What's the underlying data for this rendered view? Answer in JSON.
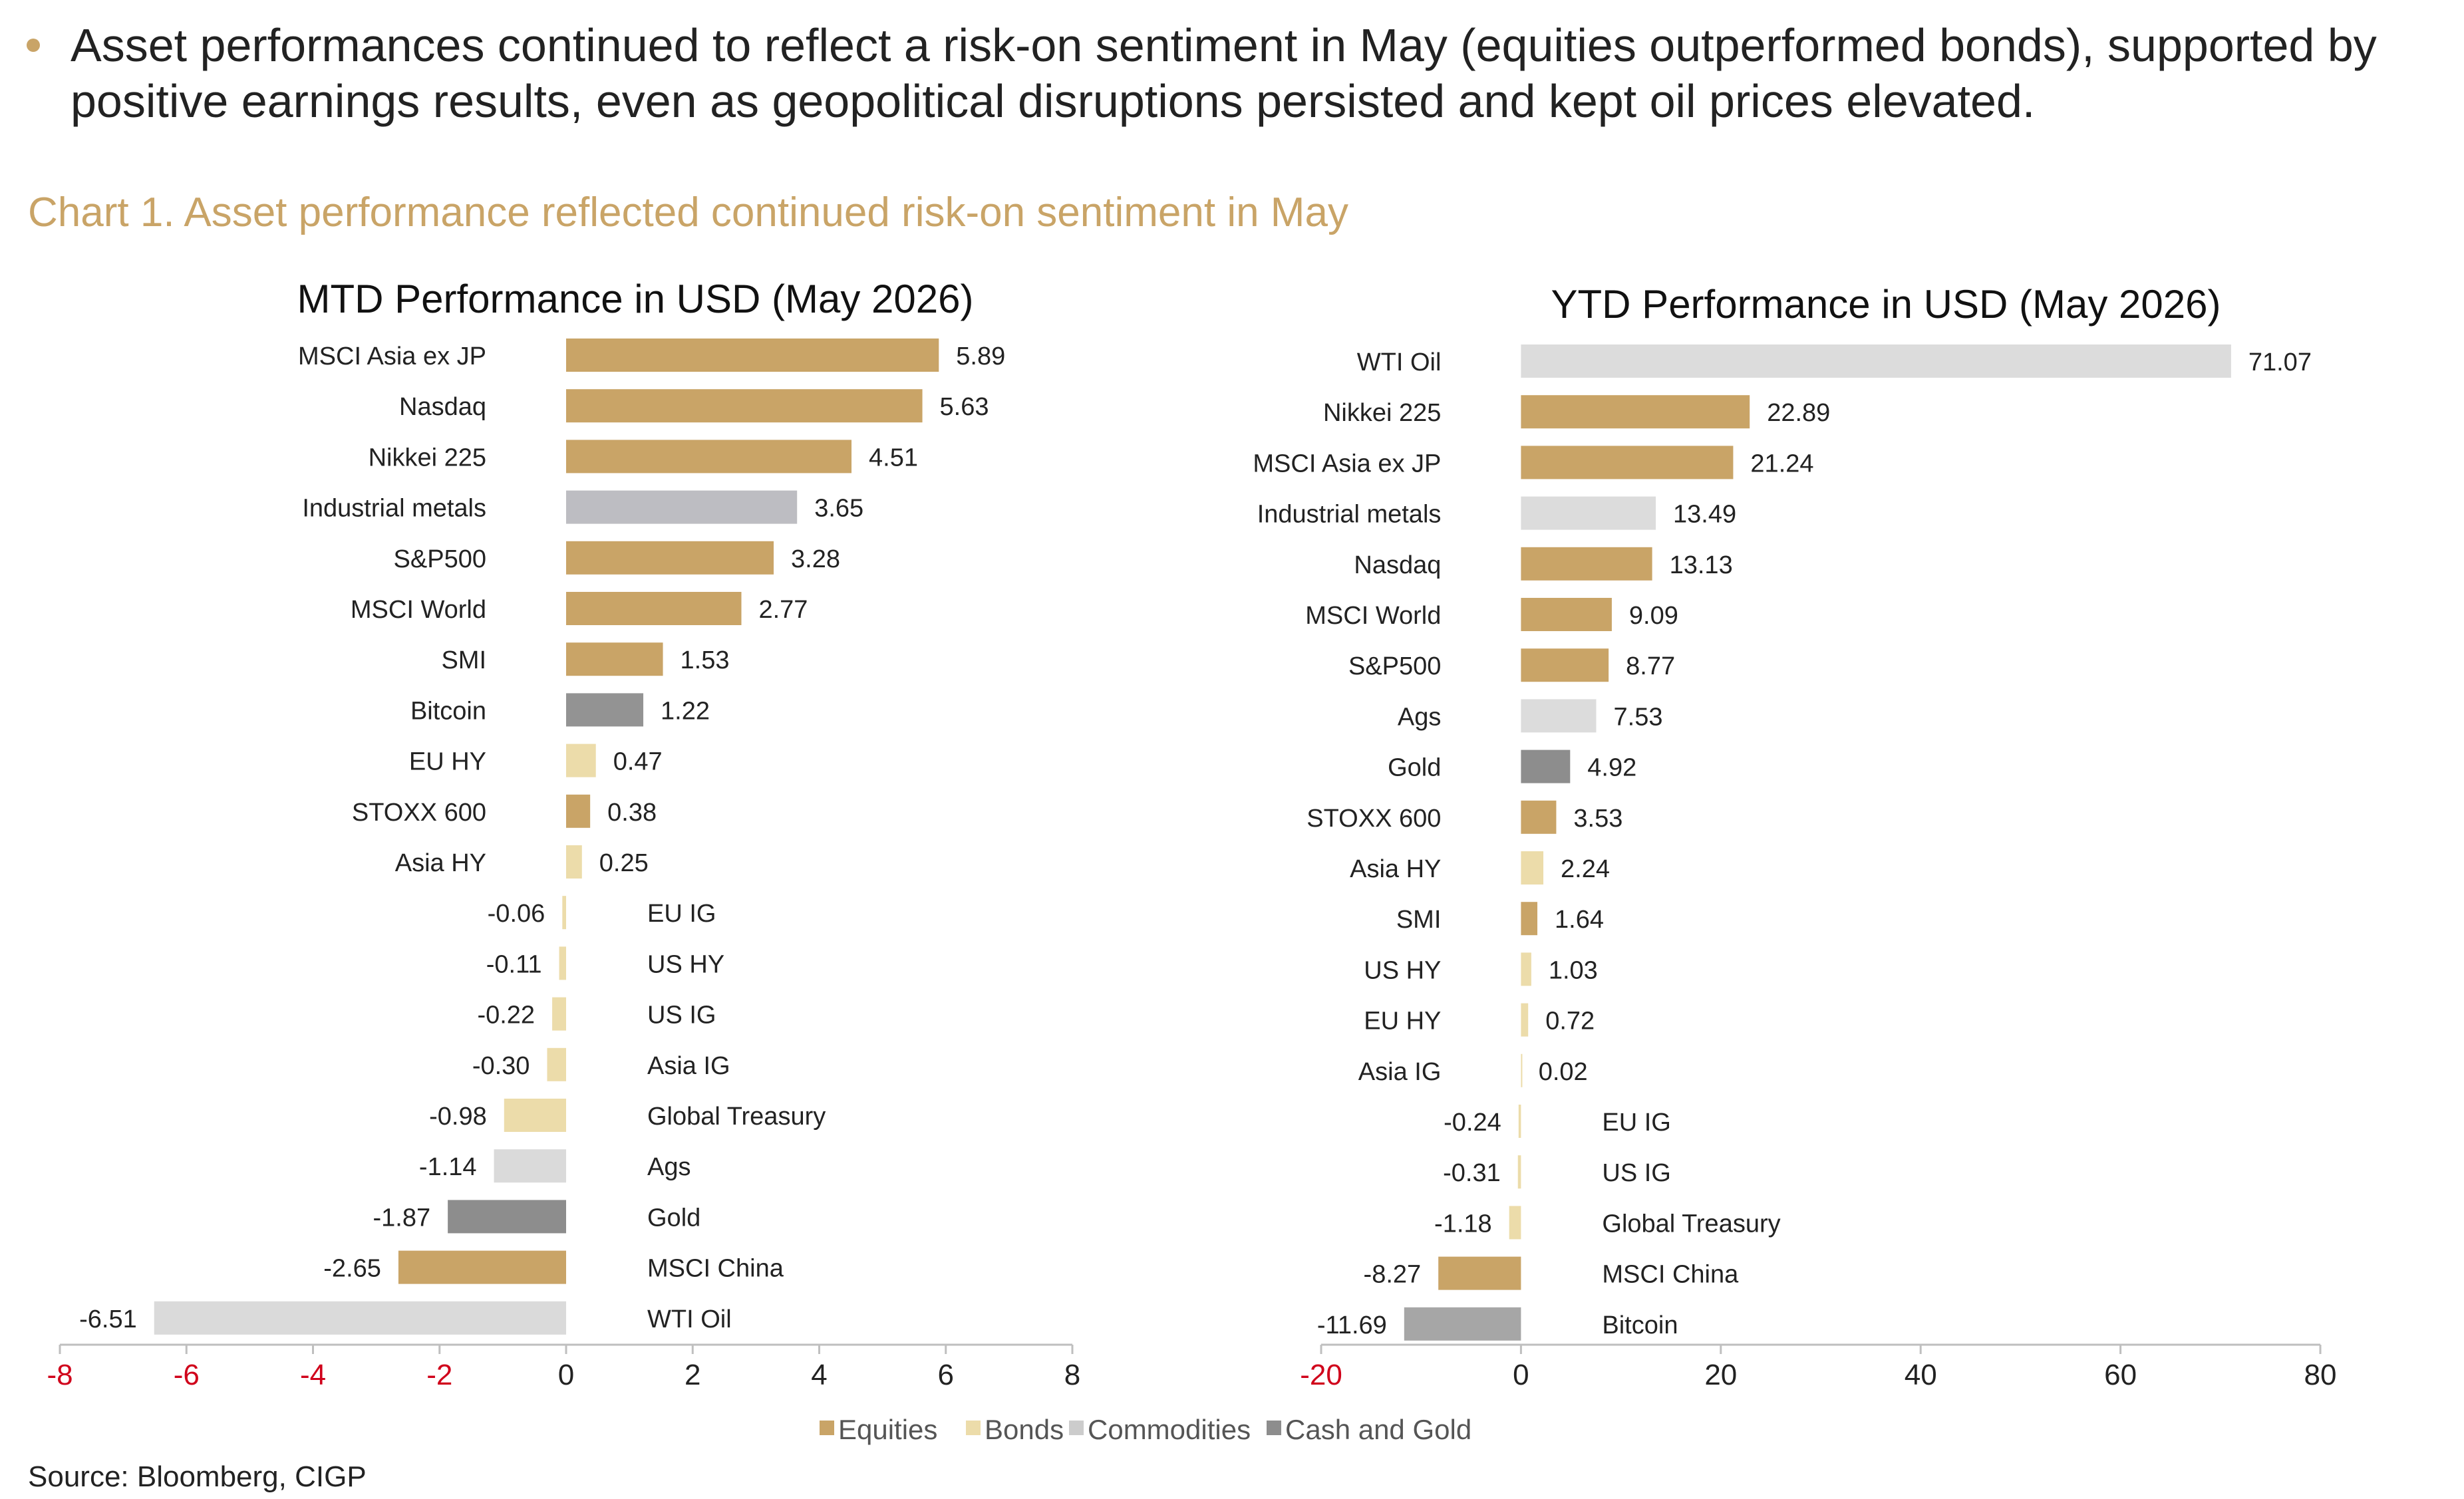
{
  "intro": {
    "bullet_text": "Asset performances continued to reflect a risk-on sentiment in May (equities outperformed bonds), supported by positive earnings results, even as geopolitical disruptions persisted and kept oil prices elevated."
  },
  "chart_heading": "Chart 1. Asset performance reflected continued risk-on sentiment in May",
  "source": "Source: Bloomberg, CIGP",
  "chart_data": [
    {
      "type": "bar",
      "orientation": "horizontal",
      "title": "MTD Performance in USD (May 2026)",
      "xlim": [
        -8,
        8
      ],
      "xticks": [
        -8,
        -6,
        -4,
        -2,
        0,
        2,
        4,
        6,
        8
      ],
      "negative_tick_color": "#d0021b",
      "bars": [
        {
          "label": "MSCI Asia ex JP",
          "value": 5.89,
          "value_label": "5.89",
          "group": "Equities"
        },
        {
          "label": "Nasdaq",
          "value": 5.63,
          "value_label": "5.63",
          "group": "Equities"
        },
        {
          "label": "Nikkei 225",
          "value": 4.51,
          "value_label": "4.51",
          "group": "Equities"
        },
        {
          "label": "Industrial metals",
          "value": 3.65,
          "value_label": "3.65",
          "group": "Commodities"
        },
        {
          "label": "S&P500",
          "value": 3.28,
          "value_label": "3.28",
          "group": "Equities"
        },
        {
          "label": "MSCI World",
          "value": 2.77,
          "value_label": "2.77",
          "group": "Equities"
        },
        {
          "label": "SMI",
          "value": 1.53,
          "value_label": "1.53",
          "group": "Equities"
        },
        {
          "label": "Bitcoin",
          "value": 1.22,
          "value_label": "1.22",
          "group": "Cash and Gold"
        },
        {
          "label": "EU HY",
          "value": 0.47,
          "value_label": "0.47",
          "group": "Bonds"
        },
        {
          "label": "STOXX 600",
          "value": 0.38,
          "value_label": "0.38",
          "group": "Equities"
        },
        {
          "label": "Asia HY",
          "value": 0.25,
          "value_label": "0.25",
          "group": "Bonds"
        },
        {
          "label": "EU IG",
          "value": -0.06,
          "value_label": "-0.06",
          "group": "Bonds"
        },
        {
          "label": "US HY",
          "value": -0.11,
          "value_label": "-0.11",
          "group": "Bonds"
        },
        {
          "label": "US IG",
          "value": -0.22,
          "value_label": "-0.22",
          "group": "Bonds"
        },
        {
          "label": "Asia IG",
          "value": -0.3,
          "value_label": "-0.30",
          "group": "Bonds"
        },
        {
          "label": "Global Treasury",
          "value": -0.98,
          "value_label": "-0.98",
          "group": "Bonds"
        },
        {
          "label": "Ags",
          "value": -1.14,
          "value_label": "-1.14",
          "group": "Commodities"
        },
        {
          "label": "Gold",
          "value": -1.87,
          "value_label": "-1.87",
          "group": "Cash and Gold"
        },
        {
          "label": "MSCI China",
          "value": -2.65,
          "value_label": "-2.65",
          "group": "Equities"
        },
        {
          "label": "WTI Oil",
          "value": -6.51,
          "value_label": "-6.51",
          "group": "Commodities"
        }
      ]
    },
    {
      "type": "bar",
      "orientation": "horizontal",
      "title": "YTD Performance in USD (May 2026)",
      "xlim": [
        -20,
        80
      ],
      "xticks": [
        -20,
        0,
        20,
        40,
        60,
        80
      ],
      "negative_tick_color": "#d0021b",
      "bars": [
        {
          "label": "WTI Oil",
          "value": 71.07,
          "value_label": "71.07",
          "group": "Commodities"
        },
        {
          "label": "Nikkei 225",
          "value": 22.89,
          "value_label": "22.89",
          "group": "Equities"
        },
        {
          "label": "MSCI Asia ex JP",
          "value": 21.24,
          "value_label": "21.24",
          "group": "Equities"
        },
        {
          "label": "Industrial metals",
          "value": 13.49,
          "value_label": "13.49",
          "group": "Commodities"
        },
        {
          "label": "Nasdaq",
          "value": 13.13,
          "value_label": "13.13",
          "group": "Equities"
        },
        {
          "label": "MSCI World",
          "value": 9.09,
          "value_label": "9.09",
          "group": "Equities"
        },
        {
          "label": "S&P500",
          "value": 8.77,
          "value_label": "8.77",
          "group": "Equities"
        },
        {
          "label": "Ags",
          "value": 7.53,
          "value_label": "7.53",
          "group": "Commodities"
        },
        {
          "label": "Gold",
          "value": 4.92,
          "value_label": "4.92",
          "group": "Cash and Gold"
        },
        {
          "label": "STOXX 600",
          "value": 3.53,
          "value_label": "3.53",
          "group": "Equities"
        },
        {
          "label": "Asia HY",
          "value": 2.24,
          "value_label": "2.24",
          "group": "Bonds"
        },
        {
          "label": "SMI",
          "value": 1.64,
          "value_label": "1.64",
          "group": "Equities"
        },
        {
          "label": "US HY",
          "value": 1.03,
          "value_label": "1.03",
          "group": "Bonds"
        },
        {
          "label": "EU HY",
          "value": 0.72,
          "value_label": "0.72",
          "group": "Bonds"
        },
        {
          "label": "Asia IG",
          "value": 0.02,
          "value_label": "0.02",
          "group": "Bonds"
        },
        {
          "label": "EU IG",
          "value": -0.24,
          "value_label": "-0.24",
          "group": "Bonds"
        },
        {
          "label": "US IG",
          "value": -0.31,
          "value_label": "-0.31",
          "group": "Bonds"
        },
        {
          "label": "Global Treasury",
          "value": -1.18,
          "value_label": "-1.18",
          "group": "Bonds"
        },
        {
          "label": "MSCI China",
          "value": -8.27,
          "value_label": "-8.27",
          "group": "Equities"
        },
        {
          "label": "Bitcoin",
          "value": -11.69,
          "value_label": "-11.69",
          "group": "Cash and Gold"
        }
      ]
    }
  ],
  "legend": {
    "items": [
      {
        "label": "Equities",
        "color": "#c9a467"
      },
      {
        "label": "Bonds",
        "color": "#ecdcaa"
      },
      {
        "label": "Commodities",
        "color": "#cccccc"
      },
      {
        "label": "Cash and Gold",
        "color": "#8d8d8d"
      }
    ]
  },
  "colors": {
    "accent": "#c9a467",
    "mtd": {
      "Equities": "#c9a467",
      "Bonds": "#ecdcaa",
      "Commodities_special": "#bdbdc2",
      "Commodities": "#dadada",
      "Cash and Gold": "#8d8d8d",
      "Bitcoin": "#939393"
    },
    "ytd": {
      "Equities": "#c9a467",
      "Bonds": "#ecdcaa",
      "Commodities": "#dcdcdc",
      "Cash and Gold": "#8d8d8d",
      "Bitcoin": "#a6a6a6"
    }
  }
}
